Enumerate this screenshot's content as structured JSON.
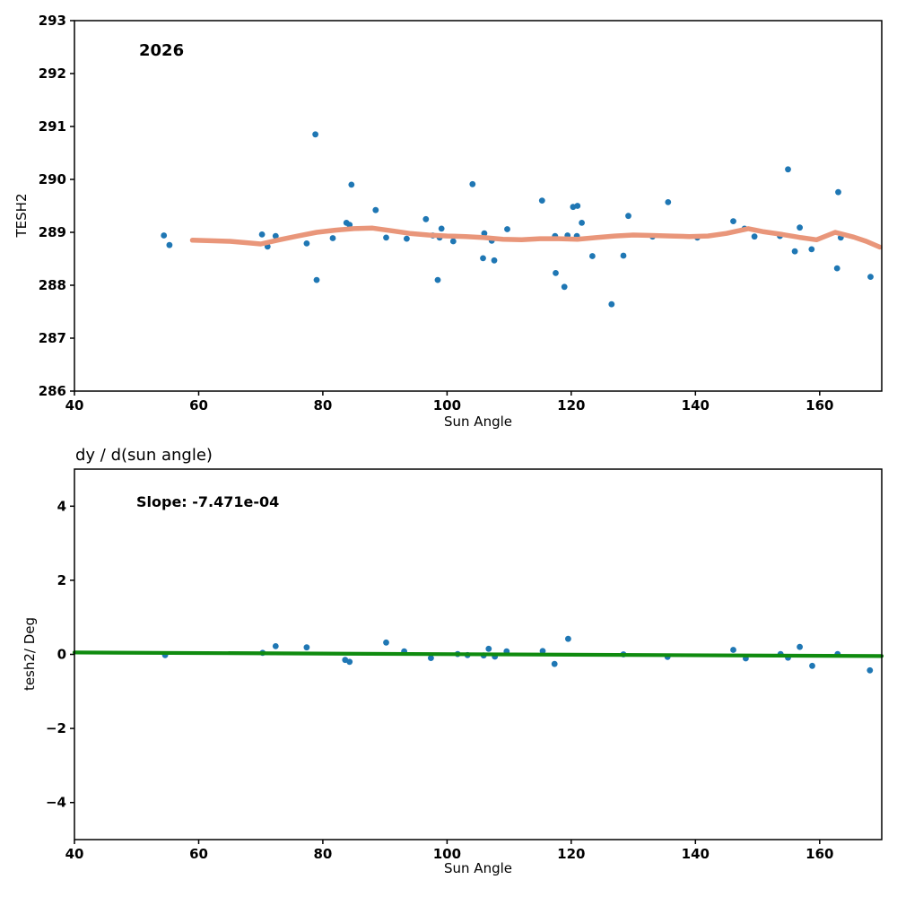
{
  "figure": {
    "background": "#ffffff",
    "spine_color": "#000000",
    "tick_color": "#000000"
  },
  "chart_data": [
    {
      "type": "scatter",
      "name": "tesh2-vs-sun-angle",
      "year_label": "2026",
      "xlabel": "Sun Angle",
      "ylabel": "TESH2",
      "xlim": [
        40,
        170
      ],
      "ylim": [
        286,
        293
      ],
      "xticks": [
        40,
        60,
        80,
        100,
        120,
        140,
        160
      ],
      "yticks": [
        286,
        287,
        288,
        289,
        290,
        291,
        292,
        293
      ],
      "grid": false,
      "legend": "none",
      "point_color": "#1f77b4",
      "trend_color": "#e9967a",
      "points": [
        [
          54.4,
          288.94
        ],
        [
          55.3,
          288.76
        ],
        [
          70.2,
          288.96
        ],
        [
          71.1,
          288.73
        ],
        [
          72.4,
          288.93
        ],
        [
          77.4,
          288.79
        ],
        [
          78.8,
          290.85
        ],
        [
          79.0,
          288.1
        ],
        [
          81.6,
          288.89
        ],
        [
          83.8,
          289.18
        ],
        [
          84.3,
          289.14
        ],
        [
          84.6,
          289.9
        ],
        [
          88.5,
          289.42
        ],
        [
          90.2,
          288.9
        ],
        [
          93.5,
          288.88
        ],
        [
          96.6,
          289.25
        ],
        [
          97.7,
          288.94
        ],
        [
          98.5,
          288.1
        ],
        [
          98.8,
          288.9
        ],
        [
          99.1,
          289.07
        ],
        [
          101.0,
          288.83
        ],
        [
          104.1,
          289.91
        ],
        [
          105.8,
          288.51
        ],
        [
          106.0,
          288.98
        ],
        [
          107.2,
          288.84
        ],
        [
          107.6,
          288.47
        ],
        [
          109.7,
          289.06
        ],
        [
          115.3,
          289.6
        ],
        [
          117.4,
          288.93
        ],
        [
          117.5,
          288.23
        ],
        [
          118.9,
          287.97
        ],
        [
          119.4,
          288.94
        ],
        [
          120.3,
          289.48
        ],
        [
          120.9,
          288.93
        ],
        [
          121.0,
          289.5
        ],
        [
          121.7,
          289.18
        ],
        [
          123.4,
          288.55
        ],
        [
          126.5,
          287.64
        ],
        [
          128.4,
          288.56
        ],
        [
          129.2,
          289.31
        ],
        [
          133.1,
          288.92
        ],
        [
          135.6,
          289.57
        ],
        [
          140.3,
          288.9
        ],
        [
          146.1,
          289.21
        ],
        [
          147.9,
          289.07
        ],
        [
          149.5,
          288.92
        ],
        [
          153.6,
          288.93
        ],
        [
          154.9,
          290.19
        ],
        [
          156.0,
          288.64
        ],
        [
          156.8,
          289.09
        ],
        [
          158.7,
          288.68
        ],
        [
          162.8,
          288.32
        ],
        [
          163.0,
          289.76
        ],
        [
          163.4,
          288.9
        ],
        [
          168.2,
          288.16
        ]
      ],
      "trend_line": [
        [
          59,
          288.85
        ],
        [
          62,
          288.84
        ],
        [
          65,
          288.83
        ],
        [
          68,
          288.8
        ],
        [
          70,
          288.78
        ],
        [
          73,
          288.86
        ],
        [
          76,
          288.93
        ],
        [
          79,
          289.0
        ],
        [
          82,
          289.04
        ],
        [
          85,
          289.07
        ],
        [
          88,
          289.08
        ],
        [
          91,
          289.03
        ],
        [
          94,
          288.98
        ],
        [
          97,
          288.95
        ],
        [
          100,
          288.93
        ],
        [
          103,
          288.92
        ],
        [
          106,
          288.9
        ],
        [
          109,
          288.87
        ],
        [
          112,
          288.86
        ],
        [
          115,
          288.88
        ],
        [
          118,
          288.88
        ],
        [
          121,
          288.87
        ],
        [
          124,
          288.9
        ],
        [
          127,
          288.93
        ],
        [
          130,
          288.95
        ],
        [
          133,
          288.94
        ],
        [
          136,
          288.93
        ],
        [
          139,
          288.92
        ],
        [
          142,
          288.93
        ],
        [
          145,
          288.98
        ],
        [
          148.5,
          289.07
        ],
        [
          151,
          289.01
        ],
        [
          154,
          288.96
        ],
        [
          157,
          288.9
        ],
        [
          159.5,
          288.86
        ],
        [
          162.5,
          289.0
        ],
        [
          165.5,
          288.91
        ],
        [
          167.5,
          288.83
        ],
        [
          169.7,
          288.72
        ]
      ]
    },
    {
      "type": "scatter",
      "name": "derivative-vs-sun-angle",
      "title": "dy / d(sun angle)",
      "slope_label": "Slope: -7.471e-04",
      "slope_value": -0.0007471,
      "xlabel": "Sun Angle",
      "ylabel": "tesh2/ Deg",
      "xlim": [
        40,
        170
      ],
      "ylim": [
        -5,
        5
      ],
      "xticks": [
        40,
        60,
        80,
        100,
        120,
        140,
        160
      ],
      "yticks": [
        {
          "v": 4,
          "label": "4"
        },
        {
          "v": 2,
          "label": "2"
        },
        {
          "v": 0,
          "label": "0"
        },
        {
          "v": -2,
          "label": "−2"
        },
        {
          "v": -4,
          "label": "−4"
        }
      ],
      "grid": false,
      "legend": "none",
      "point_color": "#1f77b4",
      "fit_color": "#0f8b0f",
      "fit_line": [
        [
          40,
          0.05
        ],
        [
          170,
          -0.047
        ]
      ],
      "points": [
        [
          54.6,
          -0.02
        ],
        [
          70.3,
          0.04
        ],
        [
          72.4,
          0.22
        ],
        [
          77.4,
          0.19
        ],
        [
          83.6,
          -0.15
        ],
        [
          84.3,
          -0.2
        ],
        [
          90.2,
          0.32
        ],
        [
          93.1,
          0.08
        ],
        [
          97.4,
          -0.1
        ],
        [
          101.7,
          0.01
        ],
        [
          103.3,
          -0.02
        ],
        [
          105.9,
          -0.03
        ],
        [
          106.7,
          0.15
        ],
        [
          107.7,
          -0.06
        ],
        [
          109.6,
          0.08
        ],
        [
          115.4,
          0.09
        ],
        [
          117.3,
          -0.26
        ],
        [
          119.5,
          0.42
        ],
        [
          128.4,
          0.0
        ],
        [
          135.5,
          -0.07
        ],
        [
          146.1,
          0.12
        ],
        [
          148.1,
          -0.11
        ],
        [
          153.7,
          0.01
        ],
        [
          154.9,
          -0.09
        ],
        [
          156.8,
          0.2
        ],
        [
          158.8,
          -0.31
        ],
        [
          162.9,
          0.01
        ],
        [
          168.1,
          -0.43
        ]
      ]
    }
  ]
}
